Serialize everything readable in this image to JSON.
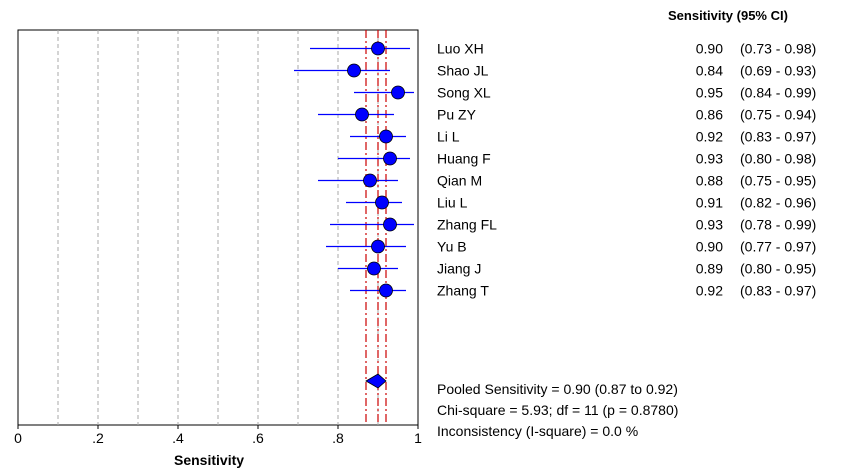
{
  "chart_data": {
    "type": "forest",
    "column_header": "Sensitivity (95% CI)",
    "xlabel": "Sensitivity",
    "xlim": [
      0,
      1
    ],
    "x_ticks": [
      {
        "value": 0,
        "label": "0"
      },
      {
        "value": 0.2,
        "label": ".2"
      },
      {
        "value": 0.4,
        "label": ".4"
      },
      {
        "value": 0.6,
        "label": ".6"
      },
      {
        "value": 0.8,
        "label": ".8"
      },
      {
        "value": 1,
        "label": "1"
      }
    ],
    "grid": "dashed vertical",
    "studies": [
      {
        "name": "Luo XH",
        "value": 0.9,
        "lower": 0.73,
        "upper": 0.98,
        "value_text": "0.90",
        "ci_text": "(0.73 - 0.98)"
      },
      {
        "name": "Shao JL",
        "value": 0.84,
        "lower": 0.69,
        "upper": 0.93,
        "value_text": "0.84",
        "ci_text": "(0.69 - 0.93)"
      },
      {
        "name": "Song XL",
        "value": 0.95,
        "lower": 0.84,
        "upper": 0.99,
        "value_text": "0.95",
        "ci_text": "(0.84 - 0.99)"
      },
      {
        "name": "Pu ZY",
        "value": 0.86,
        "lower": 0.75,
        "upper": 0.94,
        "value_text": "0.86",
        "ci_text": "(0.75 - 0.94)"
      },
      {
        "name": "Li L",
        "value": 0.92,
        "lower": 0.83,
        "upper": 0.97,
        "value_text": "0.92",
        "ci_text": "(0.83 - 0.97)"
      },
      {
        "name": "Huang F",
        "value": 0.93,
        "lower": 0.8,
        "upper": 0.98,
        "value_text": "0.93",
        "ci_text": "(0.80 - 0.98)"
      },
      {
        "name": "Qian M",
        "value": 0.88,
        "lower": 0.75,
        "upper": 0.95,
        "value_text": "0.88",
        "ci_text": "(0.75 - 0.95)"
      },
      {
        "name": "Liu L",
        "value": 0.91,
        "lower": 0.82,
        "upper": 0.96,
        "value_text": "0.91",
        "ci_text": "(0.82 - 0.96)"
      },
      {
        "name": "Zhang FL",
        "value": 0.93,
        "lower": 0.78,
        "upper": 0.99,
        "value_text": "0.93",
        "ci_text": "(0.78 - 0.99)"
      },
      {
        "name": "Yu B",
        "value": 0.9,
        "lower": 0.77,
        "upper": 0.97,
        "value_text": "0.90",
        "ci_text": "(0.77 - 0.97)"
      },
      {
        "name": "Jiang J",
        "value": 0.89,
        "lower": 0.8,
        "upper": 0.95,
        "value_text": "0.89",
        "ci_text": "(0.80 - 0.95)"
      },
      {
        "name": "Zhang T",
        "value": 0.92,
        "lower": 0.83,
        "upper": 0.97,
        "value_text": "0.92",
        "ci_text": "(0.83 - 0.97)"
      }
    ],
    "pooled": {
      "value": 0.9,
      "lower": 0.87,
      "upper": 0.92
    },
    "summary_lines": [
      "Pooled Sensitivity = 0.90 (0.87 to 0.92)",
      "Chi-square = 5.93; df =  11 (p = 0.8780)",
      "Inconsistency (I-square) = 0.0 %"
    ],
    "colors": {
      "marker": "#0000ff",
      "ci_line": "#0000ff",
      "pooled_lines": "#cc0000",
      "grid": "#aaaaaa"
    }
  }
}
